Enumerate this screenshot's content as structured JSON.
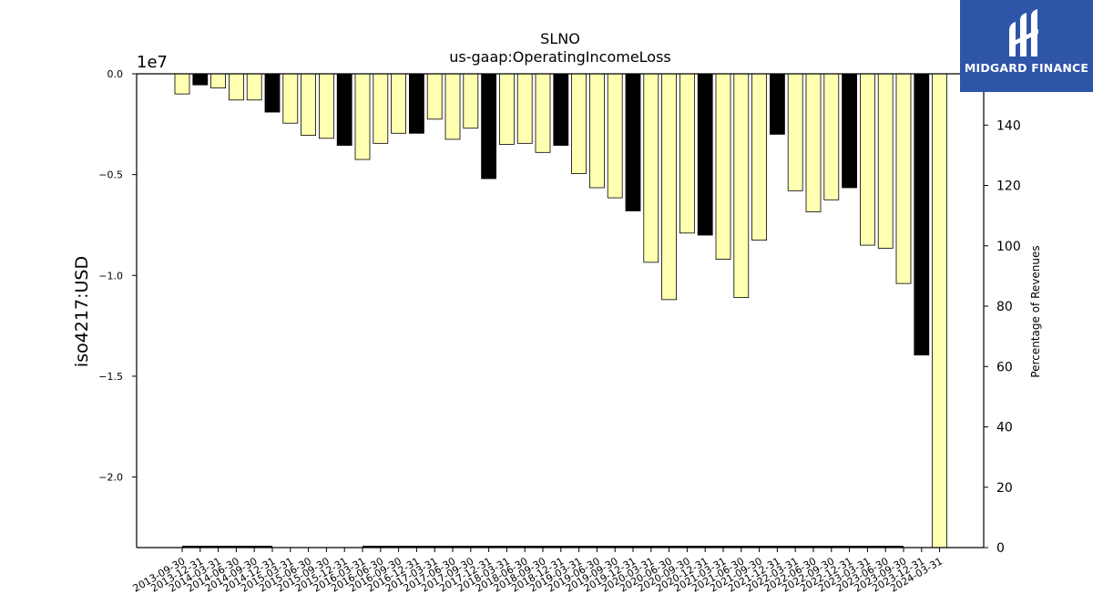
{
  "chart_data": {
    "type": "bar",
    "title": "SLNO",
    "subtitle": "us-gaap:OperatingIncomeLoss",
    "ylabel": "iso4217:USD",
    "y_offset_label": "1e7",
    "y2label": "Percentage of Revenues",
    "ylim": [
      -23500000.0,
      0
    ],
    "y2lim": [
      0,
      157
    ],
    "yticks": [
      {
        "value": 0,
        "label": "0.0"
      },
      {
        "value": -5000000,
        "label": "−0.5"
      },
      {
        "value": -10000000,
        "label": "−1.0"
      },
      {
        "value": -15000000,
        "label": "−1.5"
      },
      {
        "value": -20000000,
        "label": "−2.0"
      }
    ],
    "y2ticks": [
      0,
      20,
      40,
      60,
      80,
      100,
      120,
      140
    ],
    "bar_colors": {
      "quarter": "#ffffb2",
      "fiscal_year_end": "#000000",
      "edge": "#000000"
    },
    "categories": [
      "2013-09-30",
      "2013-12-31",
      "2014-03-31",
      "2014-06-30",
      "2014-09-30",
      "2014-12-31",
      "2015-03-31",
      "2015-06-30",
      "2015-09-30",
      "2015-12-31",
      "2016-03-31",
      "2016-06-30",
      "2016-09-30",
      "2016-12-31",
      "2017-03-31",
      "2017-06-30",
      "2017-09-30",
      "2017-12-31",
      "2018-03-31",
      "2018-06-30",
      "2018-09-30",
      "2018-12-31",
      "2019-03-31",
      "2019-06-30",
      "2019-09-30",
      "2019-12-31",
      "2020-03-31",
      "2020-06-30",
      "2020-09-30",
      "2020-12-31",
      "2021-03-31",
      "2021-06-30",
      "2021-09-30",
      "2021-12-31",
      "2022-03-31",
      "2022-06-30",
      "2022-09-30",
      "2022-12-31",
      "2023-03-31",
      "2023-06-30",
      "2023-09-30",
      "2023-12-31",
      "2024-03-31"
    ],
    "values": [
      -1000000,
      -550000,
      -700000,
      -1300000,
      -1300000,
      -1900000,
      -2450000,
      -3050000,
      -3200000,
      -3550000,
      -4250000,
      -3450000,
      -2950000,
      -2950000,
      -2250000,
      -3250000,
      -2700000,
      -5200000,
      -3500000,
      -3450000,
      -3900000,
      -3550000,
      -4950000,
      -5650000,
      -6150000,
      -6800000,
      -9350000,
      -11200000,
      -7900000,
      -8000000,
      -9200000,
      -11100000,
      -8250000,
      -3000000,
      -5800000,
      -6850000,
      -6250000,
      -5650000,
      -8500000,
      -8650000,
      -10400000,
      -13950000,
      -23500000
    ],
    "highlight": [
      false,
      true,
      false,
      false,
      false,
      true,
      false,
      false,
      false,
      true,
      false,
      false,
      false,
      true,
      false,
      false,
      false,
      true,
      false,
      false,
      false,
      true,
      false,
      false,
      false,
      true,
      false,
      false,
      false,
      true,
      false,
      false,
      false,
      true,
      false,
      false,
      false,
      true,
      false,
      false,
      false,
      true,
      false
    ],
    "pct_of_revenues": {
      "segments": [
        {
          "from": "2013-09-30",
          "to": "2014-12-31",
          "value": 0
        },
        {
          "from": "2016-03-31",
          "to": "2023-09-30",
          "value": 0
        }
      ]
    }
  },
  "logo": {
    "text": "MIDGARD FINANCE",
    "icon": "midgard-logo-icon"
  }
}
